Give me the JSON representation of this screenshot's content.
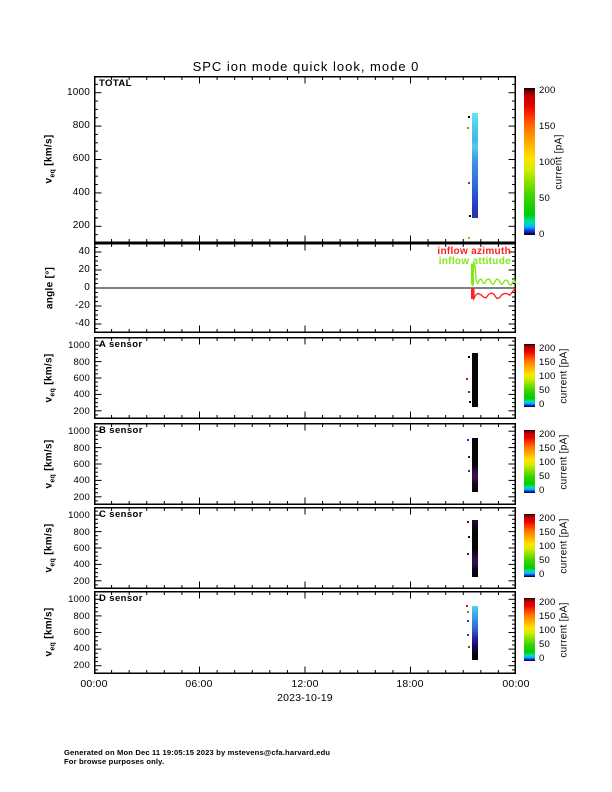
{
  "title": "SPC ion mode quick look, mode 0",
  "ylabel": {
    "base": "v",
    "sub": "eq",
    "unit": "[km/s]"
  },
  "angle_ylabel": "angle [°]",
  "panels": {
    "total": {
      "label": "TOTAL",
      "yticks": [
        "1000",
        "800",
        "600",
        "400",
        "200"
      ]
    },
    "angle": {
      "yticks": [
        "40",
        "20",
        "0",
        "-20",
        "-40"
      ]
    },
    "a": {
      "label": "A sensor",
      "yticks": [
        "1000",
        "800",
        "600",
        "400",
        "200"
      ]
    },
    "b": {
      "label": "B sensor",
      "yticks": [
        "1000",
        "800",
        "600",
        "400",
        "200"
      ]
    },
    "c": {
      "label": "C sensor",
      "yticks": [
        "1000",
        "800",
        "600",
        "400",
        "200"
      ]
    },
    "d": {
      "label": "D sensor",
      "yticks": [
        "1000",
        "800",
        "600",
        "400",
        "200"
      ]
    }
  },
  "legend": {
    "azimuth": "inflow azimuth",
    "attitude": "inflow attitude"
  },
  "colorbar": {
    "title": "current [pA]",
    "ticks": [
      "200",
      "150",
      "100",
      "50",
      "0"
    ]
  },
  "xaxis": {
    "t0": "00:00",
    "t6": "06:00",
    "t12": "12:00",
    "t18": "18:00",
    "t24": "00:00",
    "date": "2023-10-19"
  },
  "footer": {
    "line1": "Generated on Mon Dec 11 19:05:15 2023 by mstevens@cfa.harvard.edu",
    "line2": "For browse purposes only."
  },
  "colors": {
    "azimuth_red": "#ff2020",
    "attitude_green": "#7fe817",
    "axis_black": "#000000",
    "background": "#ffffff"
  },
  "chart_data": {
    "type": "multi-panel time-series quicklook (velocity-current spectrogram + angle lines)",
    "date": "2023-10-19",
    "x_range_hours": [
      0,
      24
    ],
    "x_tick_labels": [
      "00:00",
      "06:00",
      "12:00",
      "18:00",
      "00:00"
    ],
    "colorbar": {
      "label": "current [pA]",
      "range": [
        0,
        200
      ],
      "palette": "black-blue-green-yellow-orange-red-black rainbow"
    },
    "panels": [
      {
        "name": "TOTAL",
        "ylabel": "veq [km/s]",
        "ylim": [
          100,
          1100
        ],
        "event": {
          "time_hours": [
            21.5,
            21.9
          ],
          "velocity_span_km_s": [
            270,
            870
          ],
          "current": "cyan at high velocity grading to blue at low velocity, ~0-20 pA"
        }
      },
      {
        "name": "angle",
        "ylabel": "angle [deg]",
        "ylim": [
          -50,
          50
        ],
        "zero_line": true,
        "series": [
          {
            "name": "inflow azimuth",
            "color": "#ff2020",
            "points": [
              [
                21.55,
                0
              ],
              [
                21.6,
                -12
              ],
              [
                21.7,
                -8
              ],
              [
                21.85,
                -6
              ],
              [
                22.0,
                -7.5
              ],
              [
                22.15,
                -10
              ],
              [
                22.3,
                -11
              ],
              [
                22.45,
                -7
              ],
              [
                22.6,
                -5.5
              ],
              [
                22.75,
                -7
              ],
              [
                22.9,
                -11.5
              ],
              [
                23.05,
                -11
              ],
              [
                23.2,
                -7.5
              ],
              [
                23.35,
                -6
              ],
              [
                23.5,
                -6.5
              ],
              [
                23.65,
                -8
              ],
              [
                23.8,
                -4
              ],
              [
                23.9,
                -2
              ],
              [
                23.98,
                -1
              ]
            ]
          },
          {
            "name": "inflow attitude",
            "color": "#7fe817",
            "points": [
              [
                21.55,
                2
              ],
              [
                21.58,
                20
              ],
              [
                21.62,
                27
              ],
              [
                21.68,
                24
              ],
              [
                21.73,
                8
              ],
              [
                21.82,
                5
              ],
              [
                21.92,
                9
              ],
              [
                22.02,
                10
              ],
              [
                22.12,
                6
              ],
              [
                22.22,
                5
              ],
              [
                22.32,
                9
              ],
              [
                22.42,
                10
              ],
              [
                22.52,
                9
              ],
              [
                22.62,
                5
              ],
              [
                22.72,
                4
              ],
              [
                22.82,
                8
              ],
              [
                22.92,
                10
              ],
              [
                23.02,
                9
              ],
              [
                23.12,
                5
              ],
              [
                23.22,
                4
              ],
              [
                23.32,
                7
              ],
              [
                23.42,
                9
              ],
              [
                23.52,
                8
              ],
              [
                23.62,
                4
              ],
              [
                23.72,
                3
              ],
              [
                23.82,
                7
              ],
              [
                23.92,
                9
              ],
              [
                23.98,
                5
              ]
            ]
          }
        ]
      },
      {
        "name": "A sensor",
        "ylabel": "veq [km/s]",
        "ylim": [
          100,
          1100
        ],
        "event": {
          "time_hours": [
            21.5,
            21.9
          ],
          "velocity_span_km_s": [
            290,
            870
          ],
          "current": "~0 pA (black)"
        }
      },
      {
        "name": "B sensor",
        "ylabel": "veq [km/s]",
        "ylim": [
          100,
          1100
        ],
        "event": {
          "time_hours": [
            21.5,
            21.9
          ],
          "velocity_span_km_s": [
            290,
            870
          ],
          "current": "~0 pA, faint purple patch near low velocities"
        }
      },
      {
        "name": "C sensor",
        "ylabel": "veq [km/s]",
        "ylim": [
          100,
          1100
        ],
        "event": {
          "time_hours": [
            21.5,
            21.9
          ],
          "velocity_span_km_s": [
            290,
            870
          ],
          "current": "~0 pA, faint purple at top and mid-low velocities"
        }
      },
      {
        "name": "D sensor",
        "ylabel": "veq [km/s]",
        "ylim": [
          100,
          1100
        ],
        "event": {
          "time_hours": [
            21.5,
            21.9
          ],
          "velocity_span_km_s": [
            290,
            870
          ],
          "current": "cyan-to-blue-to-black gradient, ~0-15 pA"
        }
      }
    ]
  }
}
